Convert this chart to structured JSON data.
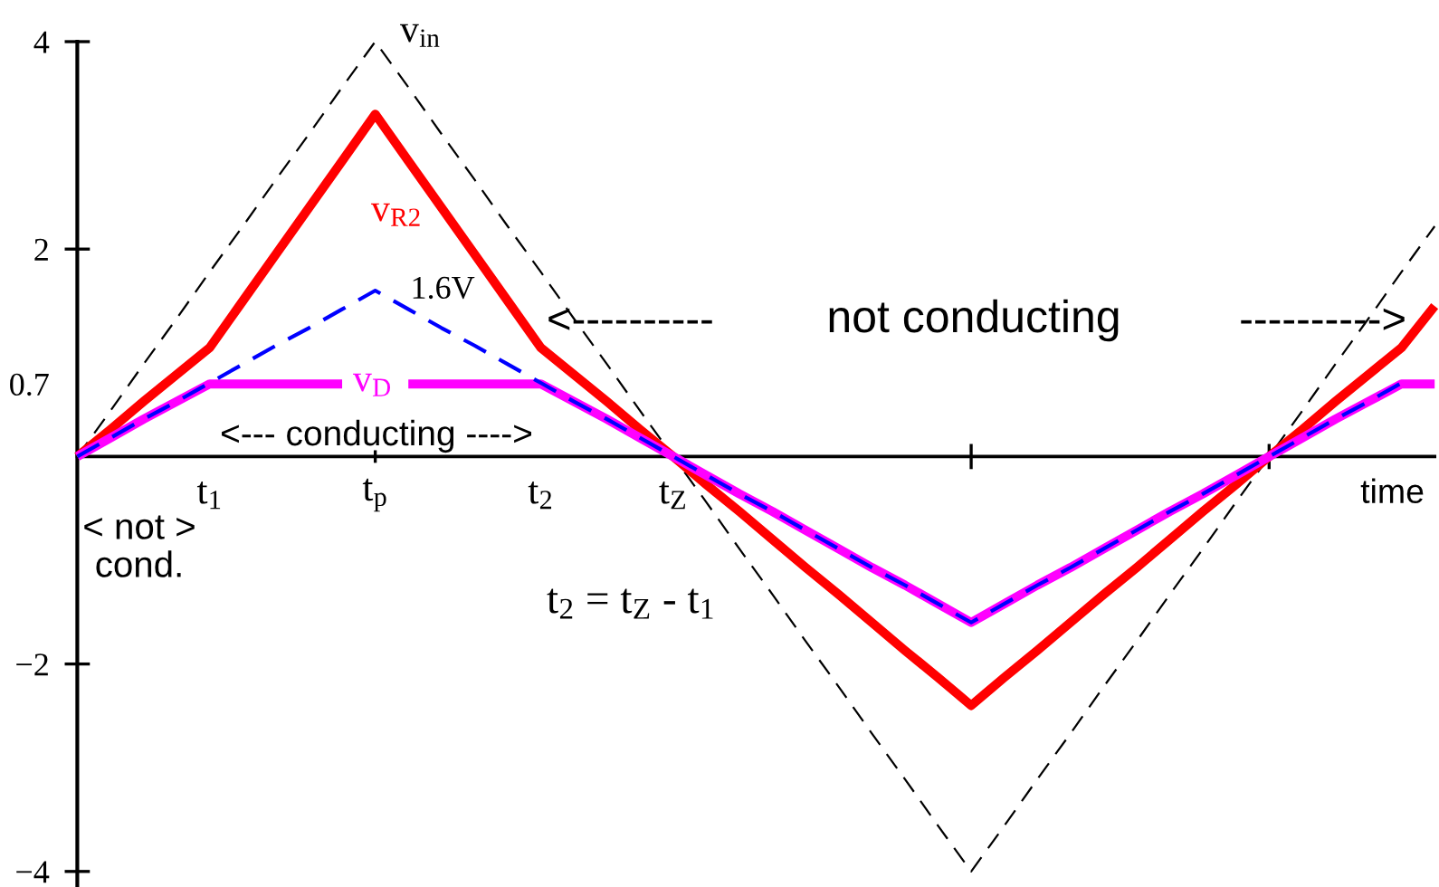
{
  "chart_data": {
    "type": "line",
    "xlabel": "time",
    "categories": [
      null,
      null,
      null,
      null,
      "t$_{1}$",
      null,
      null,
      null,
      null,
      "t$_{p}$",
      null,
      null,
      null,
      null,
      "t$_{2}$",
      null,
      null,
      null,
      "t$_{Z}$",
      null,
      null,
      null,
      null,
      null,
      null,
      null,
      null,
      null,
      null,
      null,
      null,
      null,
      null,
      null,
      null,
      null,
      null,
      null,
      null,
      null,
      null,
      null
    ],
    "ylim": [
      -4.15,
      4
    ],
    "yticks": [
      {
        "value": -4,
        "label": "−4"
      },
      {
        "value": -2,
        "label": "−2"
      },
      0.7,
      2,
      4
    ],
    "series": [
      {
        "name": "v$_{in}$",
        "color": "#000000",
        "line_style": "dashed",
        "values": [
          0,
          0.44,
          0.89,
          1.33,
          1.78,
          2.22,
          2.67,
          3.11,
          3.56,
          4,
          3.56,
          3.11,
          2.67,
          2.22,
          1.78,
          1.33,
          0.89,
          0.44,
          0,
          -0.44,
          -0.89,
          -1.33,
          -1.78,
          -2.22,
          -2.67,
          -3.11,
          -3.56,
          -4,
          -3.56,
          -3.11,
          -2.67,
          -2.22,
          -1.78,
          -1.33,
          -0.89,
          -0.44,
          0,
          0.44,
          0.89,
          1.33,
          1.78,
          2.22
        ]
      },
      {
        "name": "v$_{R2}$",
        "color": "#ff0000",
        "line_style": "solid",
        "values": [
          0,
          0.26,
          0.53,
          0.79,
          1.05,
          1.5,
          1.95,
          2.4,
          2.85,
          3.3,
          2.85,
          2.4,
          1.95,
          1.5,
          1.05,
          0.79,
          0.53,
          0.26,
          0,
          -0.27,
          -0.53,
          -0.8,
          -1.07,
          -1.33,
          -1.6,
          -1.87,
          -2.13,
          -2.4,
          -2.13,
          -1.87,
          -1.6,
          -1.33,
          -1.07,
          -0.8,
          -0.53,
          -0.27,
          0,
          0.26,
          0.53,
          0.79,
          1.05,
          1.45
        ]
      },
      {
        "name": "v$_{D}$",
        "color": "#ff00ff",
        "line_style": "solid",
        "values": [
          0,
          0.18,
          0.36,
          0.53,
          0.7,
          0.7,
          0.7,
          0.7,
          0.7,
          null,
          0.7,
          0.7,
          0.7,
          0.7,
          0.7,
          0.53,
          0.36,
          0.18,
          0,
          -0.18,
          -0.36,
          -0.53,
          -0.71,
          -0.89,
          -1.07,
          -1.24,
          -1.42,
          -1.6,
          -1.42,
          -1.24,
          -1.07,
          -0.89,
          -0.71,
          -0.53,
          -0.36,
          -0.18,
          0,
          0.18,
          0.36,
          0.53,
          0.7,
          0.7
        ]
      },
      {
        "color": "#0000ff",
        "line_style": "dashed",
        "values": [
          0,
          0.18,
          0.36,
          0.53,
          0.71,
          0.89,
          1.07,
          1.24,
          1.42,
          1.6,
          1.42,
          1.24,
          1.07,
          0.89,
          0.71,
          0.53,
          0.36,
          0.18,
          0,
          -0.18,
          -0.36,
          -0.53,
          -0.71,
          -0.89,
          -1.07,
          -1.24,
          -1.42,
          -1.6,
          -1.42,
          -1.24,
          -1.07,
          -0.89,
          -0.71,
          -0.53,
          -0.36,
          -0.18,
          0,
          0.18,
          0.36,
          0.53,
          0.71,
          null
        ]
      }
    ],
    "annotations": [
      {
        "text": "1.6V",
        "x": "t$_{p}$",
        "y": 1.6
      },
      "<--- conducting ---->",
      "<----------",
      "not conducting",
      "---------->",
      "< not >\ncond.",
      "t$_{2}$ = t$_{Z}$ - t$_{1}$"
    ]
  }
}
